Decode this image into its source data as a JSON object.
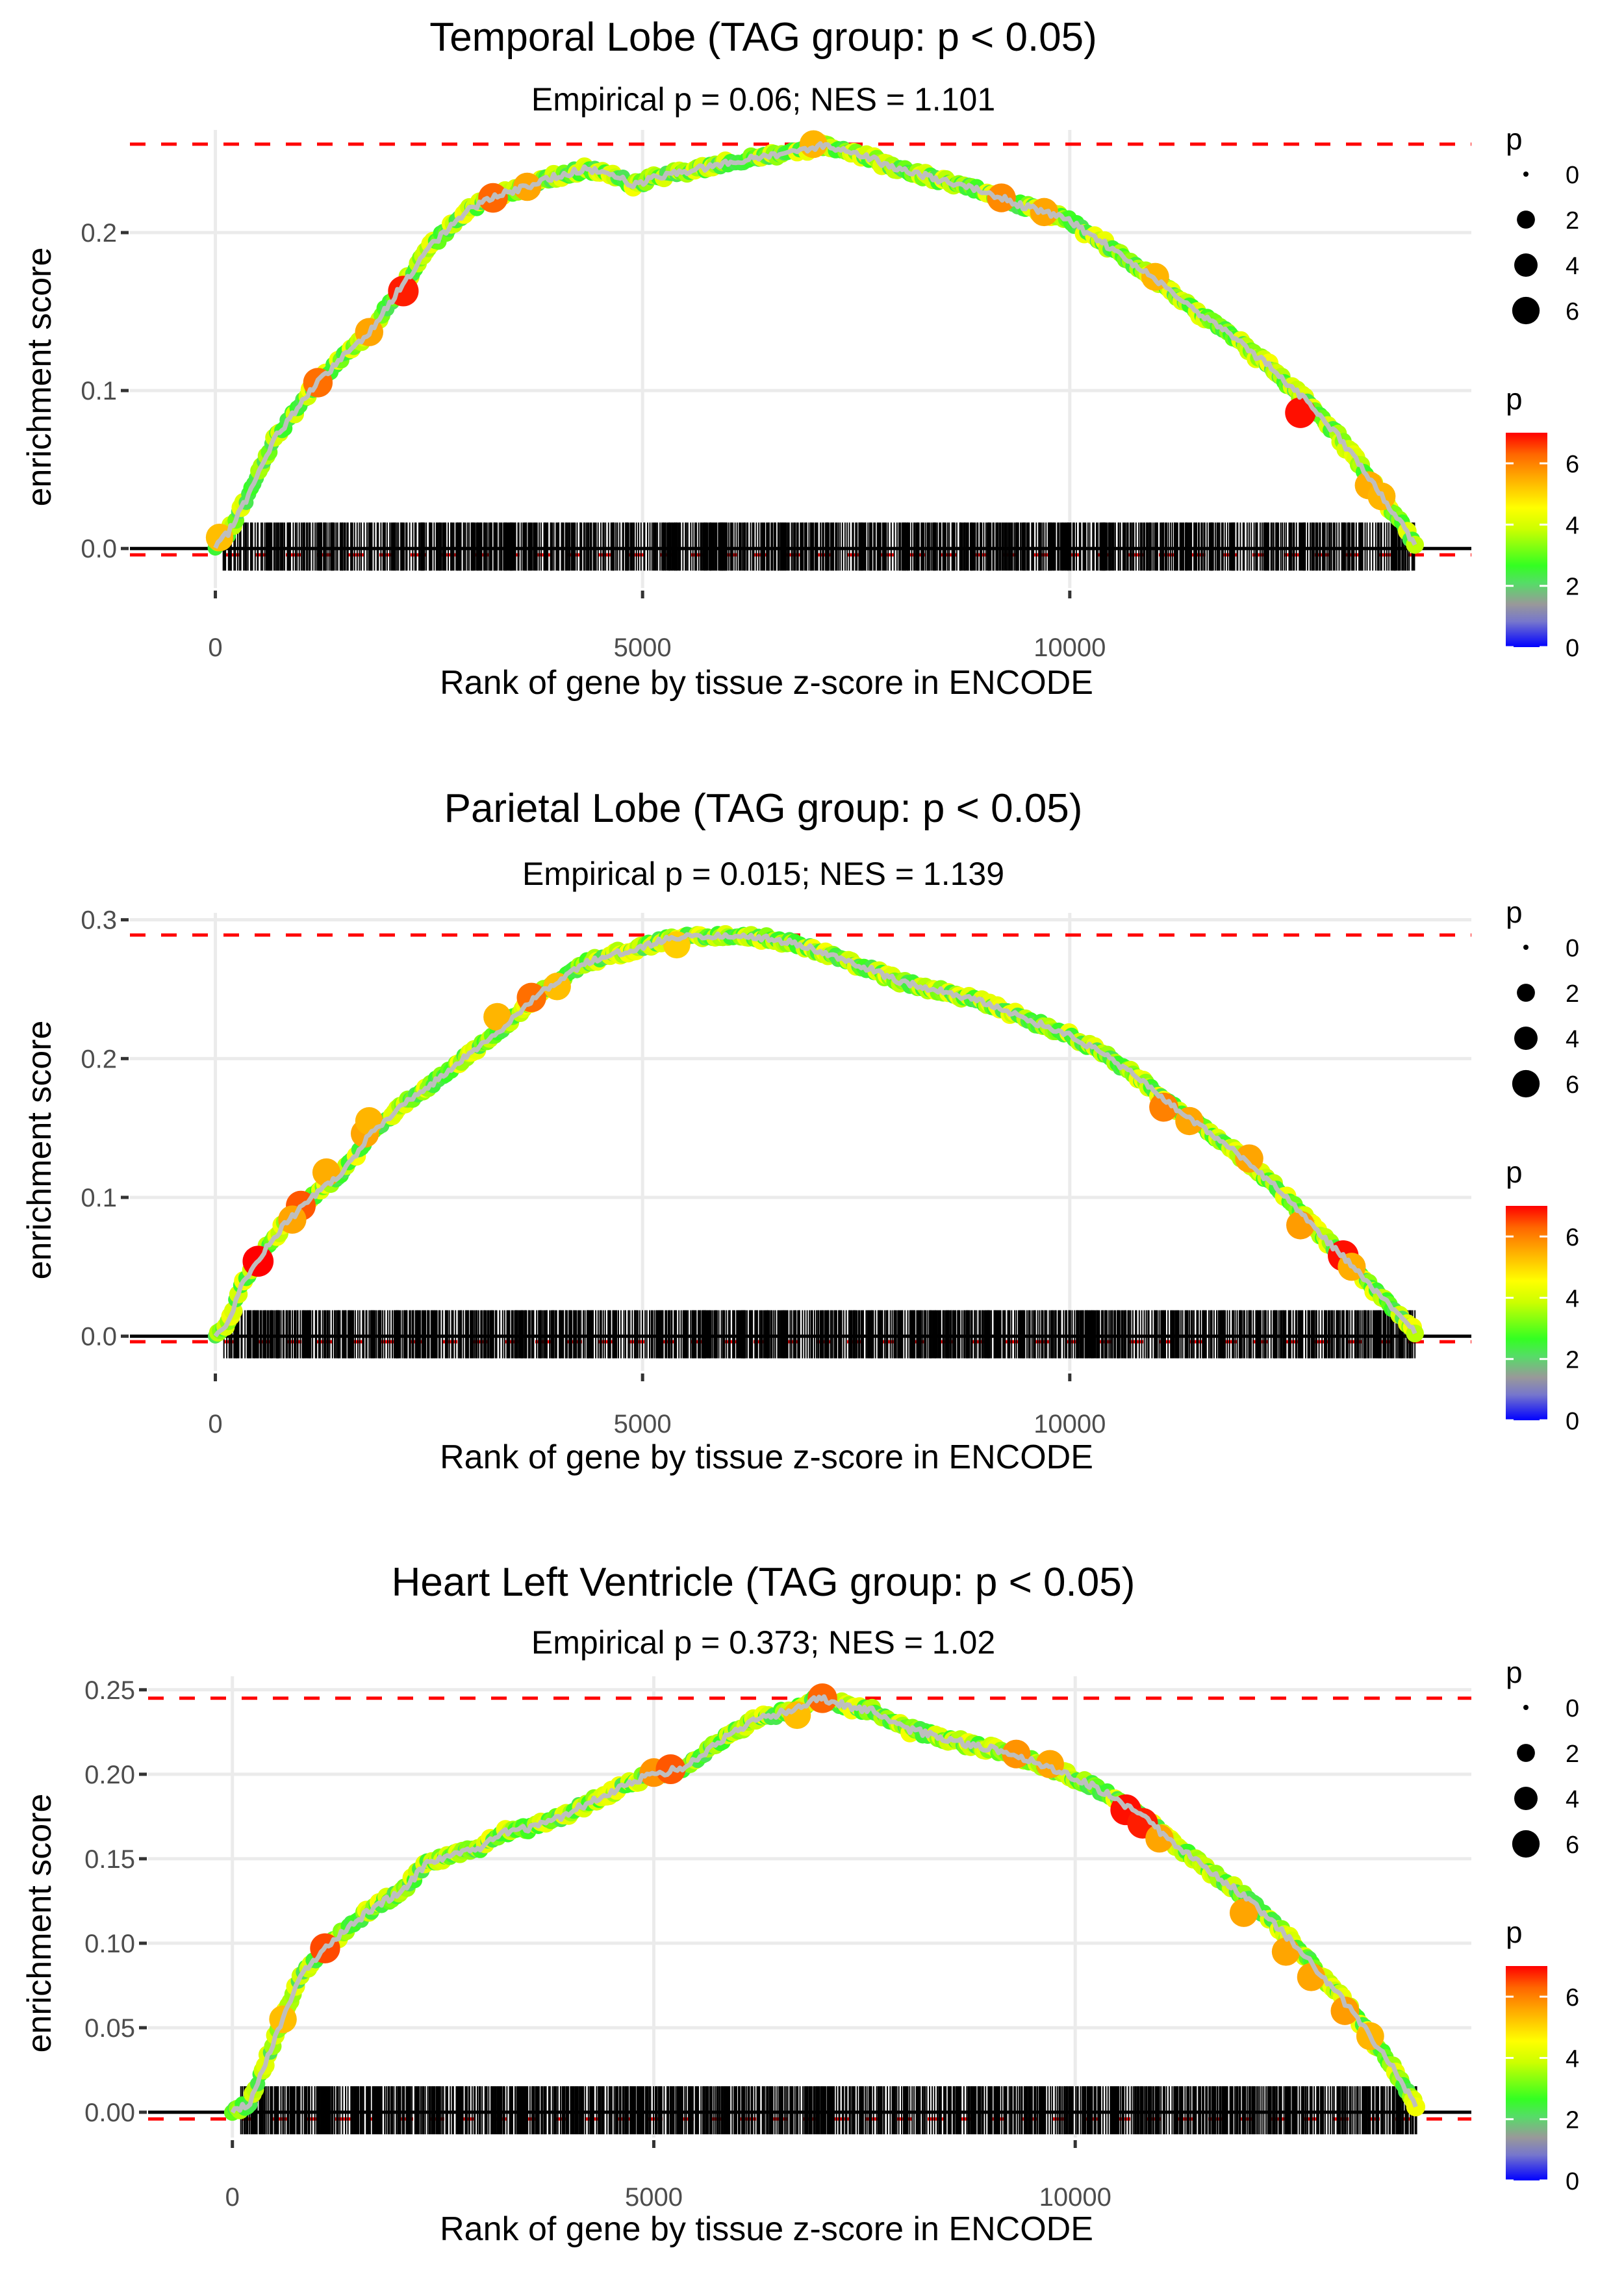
{
  "chart_data": [
    {
      "type": "line",
      "title": "Temporal Lobe (TAG group: p < 0.05)",
      "subtitle": "Empirical p = 0.06; NES = 1.101",
      "xlabel": "Rank of gene by tissue z-score in ENCODE",
      "ylabel": "enrichment score",
      "xlim": [
        -1000,
        14700
      ],
      "ylim": [
        -0.025,
        0.265
      ],
      "x_ticks": [
        0,
        5000,
        10000
      ],
      "x_tick_labels": [
        "0",
        "5000",
        "10000"
      ],
      "y_ticks": [
        0.0,
        0.1,
        0.2
      ],
      "y_tick_labels": [
        "0.0",
        "0.1",
        "0.2"
      ],
      "max_es_line": 0.256,
      "min_es_line": -0.004,
      "rug_range": [
        100,
        14050
      ],
      "grid": true,
      "series": [
        {
          "name": "running enrichment score",
          "x": [
            0,
            150,
            400,
            700,
            1000,
            1200,
            1500,
            1800,
            2100,
            2500,
            2900,
            3200,
            3600,
            4000,
            4300,
            4600,
            4900,
            5200,
            5600,
            6000,
            6400,
            6800,
            7100,
            7500,
            7900,
            8300,
            8700,
            9100,
            9500,
            9900,
            10300,
            10700,
            11100,
            11500,
            11900,
            12300,
            12700,
            13100,
            13500,
            13800,
            14050
          ],
          "y": [
            0.0,
            0.01,
            0.035,
            0.07,
            0.092,
            0.105,
            0.122,
            0.137,
            0.16,
            0.19,
            0.212,
            0.222,
            0.228,
            0.236,
            0.24,
            0.238,
            0.23,
            0.236,
            0.24,
            0.244,
            0.248,
            0.252,
            0.255,
            0.251,
            0.242,
            0.236,
            0.23,
            0.224,
            0.216,
            0.21,
            0.197,
            0.182,
            0.167,
            0.15,
            0.134,
            0.117,
            0.097,
            0.074,
            0.045,
            0.022,
            0.002
          ]
        }
      ],
      "highlight_points": [
        {
          "x": 1200,
          "y": 0.105,
          "p": 6.2
        },
        {
          "x": 2200,
          "y": 0.163,
          "p": 6.8
        },
        {
          "x": 1800,
          "y": 0.137,
          "p": 5.6
        },
        {
          "x": 3250,
          "y": 0.222,
          "p": 6.3
        },
        {
          "x": 3650,
          "y": 0.229,
          "p": 5.6
        },
        {
          "x": 7000,
          "y": 0.256,
          "p": 5.4
        },
        {
          "x": 9200,
          "y": 0.222,
          "p": 5.9
        },
        {
          "x": 9700,
          "y": 0.213,
          "p": 5.6
        },
        {
          "x": 11000,
          "y": 0.172,
          "p": 5.4
        },
        {
          "x": 12700,
          "y": 0.086,
          "p": 6.9
        },
        {
          "x": 13500,
          "y": 0.04,
          "p": 5.5
        },
        {
          "x": 13650,
          "y": 0.033,
          "p": 5.4
        },
        {
          "x": 50,
          "y": 0.007,
          "p": 5.3
        }
      ]
    },
    {
      "type": "line",
      "title": "Parietal Lobe (TAG group: p < 0.05)",
      "subtitle": "Empirical p = 0.015; NES = 1.139",
      "xlabel": "Rank of gene by tissue z-score in ENCODE",
      "ylabel": "enrichment score",
      "xlim": [
        -1000,
        14700
      ],
      "ylim": [
        -0.025,
        0.305
      ],
      "x_ticks": [
        0,
        5000,
        10000
      ],
      "x_tick_labels": [
        "0",
        "5000",
        "10000"
      ],
      "y_ticks": [
        0.0,
        0.1,
        0.2,
        0.3
      ],
      "y_tick_labels": [
        "0.0",
        "0.1",
        "0.2",
        "0.3"
      ],
      "max_es_line": 0.289,
      "min_es_line": -0.004,
      "rug_range": [
        100,
        14050
      ],
      "grid": true,
      "series": [
        {
          "name": "running enrichment score",
          "x": [
            0,
            150,
            300,
            500,
            800,
            1100,
            1500,
            1800,
            2100,
            2500,
            2900,
            3300,
            3700,
            4000,
            4300,
            4700,
            5000,
            5300,
            5600,
            6000,
            6400,
            6800,
            7200,
            7600,
            8000,
            8400,
            8800,
            9200,
            9600,
            10000,
            10400,
            10800,
            11200,
            11600,
            12000,
            12400,
            12800,
            13200,
            13500,
            13800,
            14050
          ],
          "y": [
            0.0,
            0.01,
            0.035,
            0.055,
            0.08,
            0.098,
            0.118,
            0.145,
            0.162,
            0.18,
            0.2,
            0.218,
            0.242,
            0.256,
            0.268,
            0.276,
            0.28,
            0.287,
            0.288,
            0.289,
            0.287,
            0.283,
            0.275,
            0.266,
            0.256,
            0.25,
            0.244,
            0.236,
            0.226,
            0.217,
            0.203,
            0.186,
            0.166,
            0.148,
            0.13,
            0.108,
            0.082,
            0.057,
            0.038,
            0.018,
            0.002
          ]
        }
      ],
      "highlight_points": [
        {
          "x": 500,
          "y": 0.054,
          "p": 7.0
        },
        {
          "x": 1000,
          "y": 0.094,
          "p": 6.4
        },
        {
          "x": 900,
          "y": 0.084,
          "p": 5.6
        },
        {
          "x": 1300,
          "y": 0.118,
          "p": 5.5
        },
        {
          "x": 1750,
          "y": 0.146,
          "p": 5.6
        },
        {
          "x": 1800,
          "y": 0.155,
          "p": 5.4
        },
        {
          "x": 3300,
          "y": 0.23,
          "p": 5.4
        },
        {
          "x": 3700,
          "y": 0.244,
          "p": 6.2
        },
        {
          "x": 4000,
          "y": 0.252,
          "p": 5.3
        },
        {
          "x": 5400,
          "y": 0.282,
          "p": 5.1
        },
        {
          "x": 11100,
          "y": 0.165,
          "p": 6.0
        },
        {
          "x": 11400,
          "y": 0.155,
          "p": 5.6
        },
        {
          "x": 12100,
          "y": 0.128,
          "p": 5.6
        },
        {
          "x": 12700,
          "y": 0.08,
          "p": 5.7
        },
        {
          "x": 13200,
          "y": 0.058,
          "p": 6.9
        },
        {
          "x": 13300,
          "y": 0.05,
          "p": 5.5
        }
      ]
    },
    {
      "type": "line",
      "title": "Heart Left Ventricle (TAG group: p < 0.05)",
      "subtitle": "Empirical p = 0.373; NES = 1.02",
      "xlabel": "Rank of gene by tissue z-score in ENCODE",
      "ylabel": "enrichment score",
      "xlim": [
        -1000,
        14700
      ],
      "ylim": [
        -0.015,
        0.258
      ],
      "x_ticks": [
        0,
        5000,
        10000
      ],
      "x_tick_labels": [
        "0",
        "5000",
        "10000"
      ],
      "y_ticks": [
        0.0,
        0.05,
        0.1,
        0.15,
        0.2,
        0.25
      ],
      "y_tick_labels": [
        "0.00",
        "0.05",
        "0.10",
        "0.15",
        "0.20",
        "0.25"
      ],
      "max_es_line": 0.245,
      "min_es_line": -0.004,
      "rug_range": [
        100,
        14050
      ],
      "grid": true,
      "series": [
        {
          "name": "running enrichment score",
          "x": [
            0,
            200,
            400,
            600,
            800,
            1100,
            1400,
            1700,
            2000,
            2300,
            2600,
            2900,
            3200,
            3500,
            3800,
            4100,
            4400,
            4700,
            5000,
            5300,
            5600,
            5900,
            6200,
            6500,
            6800,
            7000,
            7300,
            7600,
            8000,
            8400,
            8800,
            9200,
            9600,
            10000,
            10400,
            10800,
            11200,
            11600,
            12000,
            12400,
            12800,
            13200,
            13500,
            13800,
            14050
          ],
          "y": [
            0.0,
            0.005,
            0.03,
            0.055,
            0.08,
            0.097,
            0.11,
            0.122,
            0.13,
            0.147,
            0.152,
            0.155,
            0.165,
            0.168,
            0.172,
            0.18,
            0.187,
            0.195,
            0.2,
            0.203,
            0.212,
            0.224,
            0.232,
            0.236,
            0.242,
            0.245,
            0.24,
            0.238,
            0.227,
            0.222,
            0.217,
            0.213,
            0.206,
            0.198,
            0.188,
            0.175,
            0.158,
            0.143,
            0.128,
            0.11,
            0.088,
            0.065,
            0.045,
            0.024,
            0.002
          ]
        }
      ],
      "highlight_points": [
        {
          "x": 600,
          "y": 0.055,
          "p": 5.3
        },
        {
          "x": 1100,
          "y": 0.097,
          "p": 6.5
        },
        {
          "x": 5000,
          "y": 0.201,
          "p": 5.8
        },
        {
          "x": 5200,
          "y": 0.203,
          "p": 6.4
        },
        {
          "x": 6700,
          "y": 0.235,
          "p": 5.3
        },
        {
          "x": 7000,
          "y": 0.245,
          "p": 6.3
        },
        {
          "x": 9300,
          "y": 0.212,
          "p": 5.8
        },
        {
          "x": 9700,
          "y": 0.206,
          "p": 5.6
        },
        {
          "x": 10600,
          "y": 0.179,
          "p": 6.9
        },
        {
          "x": 10800,
          "y": 0.171,
          "p": 6.8
        },
        {
          "x": 11000,
          "y": 0.162,
          "p": 5.6
        },
        {
          "x": 12000,
          "y": 0.118,
          "p": 5.6
        },
        {
          "x": 12500,
          "y": 0.095,
          "p": 5.6
        },
        {
          "x": 12800,
          "y": 0.08,
          "p": 5.6
        },
        {
          "x": 13200,
          "y": 0.06,
          "p": 5.7
        },
        {
          "x": 13500,
          "y": 0.045,
          "p": 5.4
        }
      ]
    }
  ],
  "legends": {
    "size_legend": {
      "title": "p",
      "values": [
        0,
        2,
        4,
        6
      ],
      "labels": [
        "0",
        "2",
        "4",
        "6"
      ]
    },
    "color_legend": {
      "title": "p",
      "range": [
        0,
        7
      ],
      "tick_values": [
        0,
        2,
        4,
        6
      ],
      "labels": [
        "0",
        "2",
        "4",
        "6"
      ],
      "colors": [
        "#0000ff",
        "#999999",
        "#33ff33",
        "#ffff00",
        "#ff9900",
        "#ff0000"
      ]
    }
  },
  "colors": {
    "max_line": "#ff0000",
    "grid": "#ebebeb",
    "curve_core": "#bebebe",
    "rug": "#000000",
    "zero_line": "#000000"
  }
}
